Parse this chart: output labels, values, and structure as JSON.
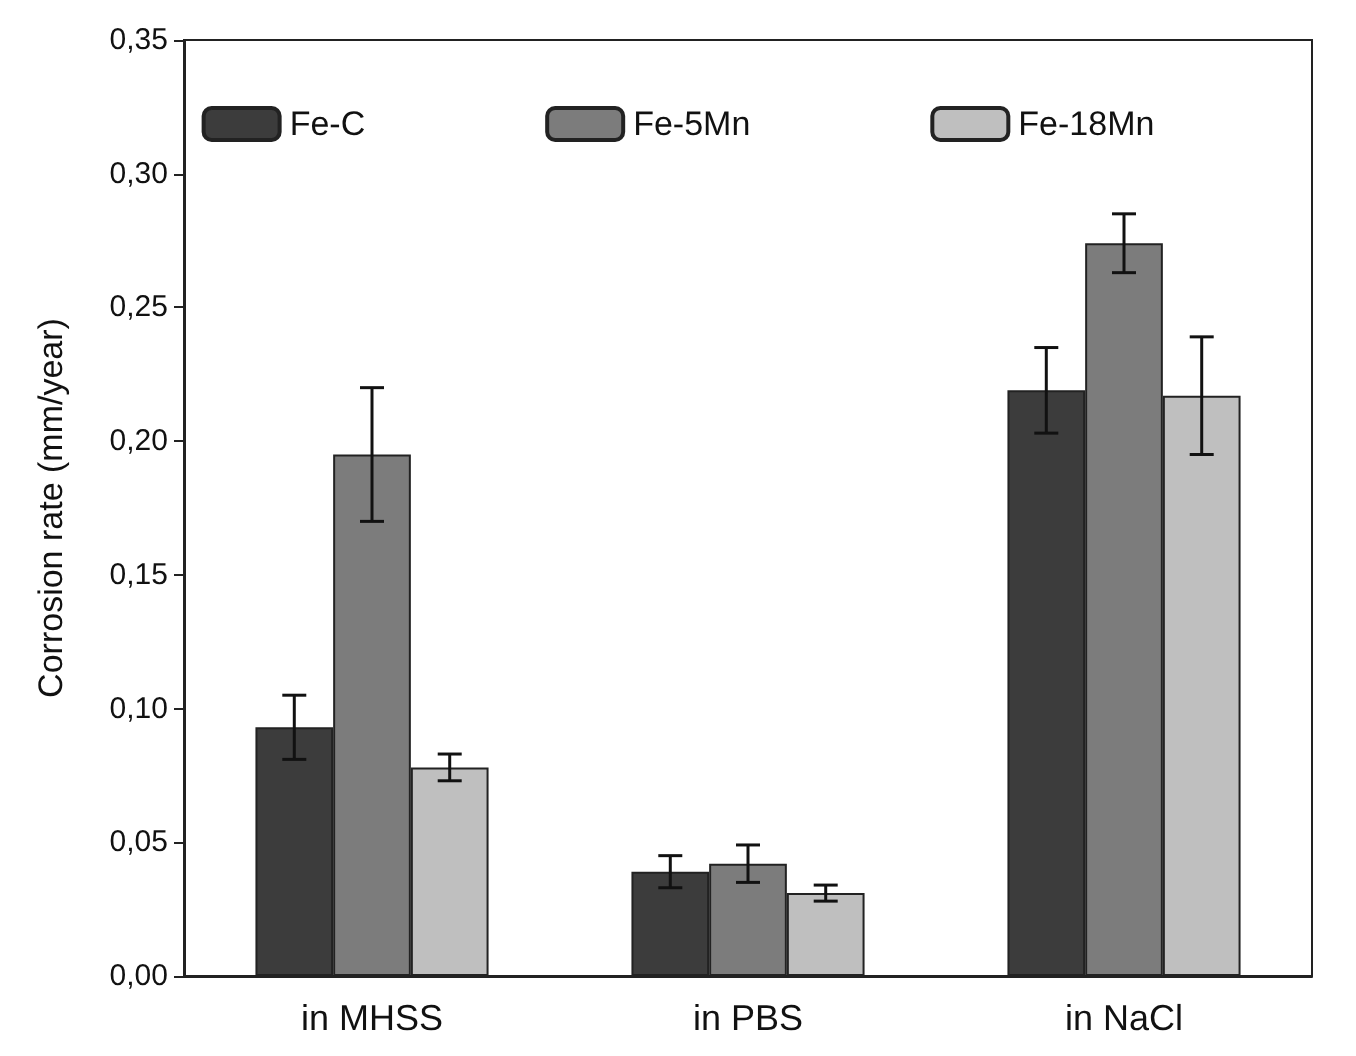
{
  "chart_data": {
    "type": "bar",
    "ylabel": "Corrosion rate (mm/year)",
    "categories": [
      "in MHSS",
      "in PBS",
      "in NaCl"
    ],
    "series": [
      {
        "name": "Fe-C",
        "color": "#3c3c3c",
        "values": [
          0.093,
          0.039,
          0.219
        ],
        "errors": [
          0.012,
          0.006,
          0.016
        ]
      },
      {
        "name": "Fe-5Mn",
        "color": "#7c7c7c",
        "values": [
          0.195,
          0.042,
          0.274
        ],
        "errors": [
          0.025,
          0.007,
          0.011
        ]
      },
      {
        "name": "Fe-18Mn",
        "color": "#bfbfbf",
        "values": [
          0.078,
          0.031,
          0.217
        ],
        "errors": [
          0.005,
          0.003,
          0.022
        ]
      }
    ],
    "ylim": [
      0,
      0.35
    ],
    "yticks": [
      {
        "value": 0,
        "label": "0,00"
      },
      {
        "value": 0.05,
        "label": "0,05"
      },
      {
        "value": 0.1,
        "label": "0,10"
      },
      {
        "value": 0.15,
        "label": "0,15"
      },
      {
        "value": 0.2,
        "label": "0,20"
      },
      {
        "value": 0.25,
        "label": "0,25"
      },
      {
        "value": 0.3,
        "label": "0,30"
      },
      {
        "value": 0.35,
        "label": "0,35"
      }
    ],
    "grid": false,
    "legend": "top"
  }
}
